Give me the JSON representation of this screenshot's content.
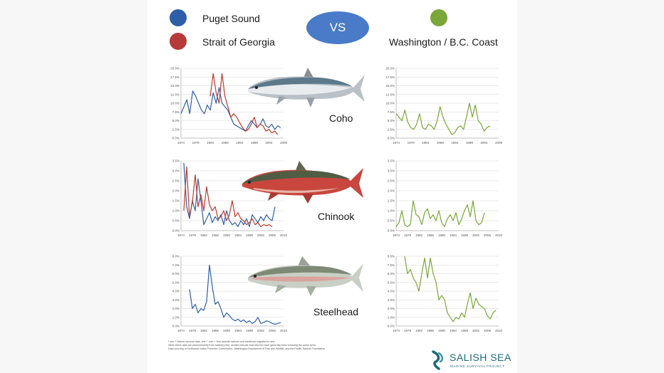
{
  "legend": {
    "left": [
      {
        "label": "Puget Sound",
        "color": "#2e5ea8"
      },
      {
        "label": "Strait of Georgia",
        "color": "#b73a3a"
      }
    ],
    "vs_label": "VS",
    "right": [
      {
        "label": "Washington / B.C. Coast",
        "color": "#7aa63a"
      }
    ]
  },
  "fish_labels": {
    "coho": "Coho",
    "chinook": "Chinook",
    "steelhead": "Steelhead"
  },
  "footnote": [
    "* one + Marine survival data, one + one + Year juvenile salmon and steelhead migrated to sea.",
    "While these data are predominantly from hatchery fish, studies indicate that wild fish have generally been following the same trend.",
    "Data courtesy of Northwest Indian Fisheries Commission, Washington Department of Fish and Wildlife, and the Pacific Salmon Foundation."
  ],
  "logo": {
    "name": "SALISH SEA",
    "subtitle": "MARINE SURVIVAL PROJECT"
  },
  "colors": {
    "puget": "#2e5ea8",
    "georgia": "#c0392b",
    "coast": "#7aa63a"
  },
  "chart_data": [
    {
      "id": "coho-salish",
      "type": "line",
      "ylim": [
        0,
        20
      ],
      "yticks": [
        "0.0%",
        "2.5%",
        "5.0%",
        "7.5%",
        "10.0%",
        "12.5%",
        "15.0%",
        "17.5%",
        "20.0%"
      ],
      "xlim": [
        1974,
        2009
      ],
      "xticks": [
        "1974",
        "1979",
        "1984",
        "1989",
        "1994",
        "1999",
        "2004",
        "2009"
      ],
      "series": [
        {
          "name": "Puget Sound",
          "color": "#2e5ea8",
          "x": [
            1974,
            1975,
            1976,
            1977,
            1978,
            1979,
            1980,
            1981,
            1982,
            1983,
            1984,
            1985,
            1986,
            1987,
            1988,
            1989,
            1990,
            1991,
            1992,
            1993,
            1994,
            1995,
            1996,
            1997,
            1998,
            1999,
            2000,
            2001,
            2002,
            2003,
            2004,
            2005,
            2006,
            2007,
            2008
          ],
          "y": [
            7,
            9,
            11,
            7,
            13.5,
            12,
            10,
            8,
            7,
            9.5,
            8,
            13,
            10,
            14.5,
            10,
            9,
            8,
            6,
            4,
            3.5,
            3,
            2.5,
            2,
            3.5,
            5,
            4,
            3,
            4,
            5.5,
            3.5,
            3,
            4,
            2.5,
            3.5,
            3
          ]
        },
        {
          "name": "Strait of Georgia",
          "color": "#c0392b",
          "x": [
            1984,
            1985,
            1986,
            1987,
            1988,
            1989,
            1990,
            1991,
            1992,
            1993,
            1994,
            1995,
            1996,
            1997,
            1998,
            1999,
            2000,
            2001,
            2002,
            2003,
            2004,
            2005,
            2006,
            2007
          ],
          "y": [
            12,
            18.5,
            13,
            10,
            18.5,
            12,
            9,
            6,
            7,
            6,
            4.5,
            3,
            2,
            2.5,
            4,
            6,
            3,
            4,
            3.5,
            2,
            2.5,
            1.5,
            2,
            1
          ]
        }
      ]
    },
    {
      "id": "coho-coast",
      "type": "line",
      "ylim": [
        0,
        20
      ],
      "yticks": [
        "0.0%",
        "2.5%",
        "5.0%",
        "7.5%",
        "10.0%",
        "12.5%",
        "15.0%",
        "17.5%",
        "20.0%"
      ],
      "xlim": [
        1974,
        2009
      ],
      "xticks": [
        "1974",
        "1979",
        "1984",
        "1989",
        "1994",
        "1999",
        "2004",
        "2009"
      ],
      "series": [
        {
          "name": "Washington / B.C. Coast",
          "color": "#7aa63a",
          "x": [
            1974,
            1975,
            1976,
            1977,
            1978,
            1979,
            1980,
            1981,
            1982,
            1983,
            1984,
            1985,
            1986,
            1987,
            1988,
            1989,
            1990,
            1991,
            1992,
            1993,
            1994,
            1995,
            1996,
            1997,
            1998,
            1999,
            2000,
            2001,
            2002,
            2003,
            2004,
            2005,
            2006
          ],
          "y": [
            7,
            6,
            5,
            8,
            4.5,
            3,
            2.5,
            4,
            7,
            3,
            2.5,
            4,
            3.5,
            2.5,
            5,
            9,
            6,
            4,
            2.5,
            1,
            1.5,
            3,
            3.5,
            2.5,
            6,
            10,
            6,
            9.5,
            5,
            4,
            2,
            3,
            3.5
          ]
        }
      ]
    },
    {
      "id": "chinook-salish",
      "type": "line",
      "ylim": [
        0,
        3.5
      ],
      "yticks": [
        "0.0%",
        "0.5%",
        "1.0%",
        "1.5%",
        "2.0%",
        "2.5%",
        "3.0%",
        "3.5%"
      ],
      "xlim": [
        1974,
        2010
      ],
      "xticks": [
        "1974",
        "1978",
        "1982",
        "1986",
        "1990",
        "1994",
        "1998",
        "2002",
        "2006",
        "2010"
      ],
      "series": [
        {
          "name": "Puget Sound",
          "color": "#2e5ea8",
          "x": [
            1975,
            1976,
            1977,
            1978,
            1979,
            1980,
            1981,
            1982,
            1983,
            1984,
            1985,
            1986,
            1987,
            1988,
            1989,
            1990,
            1991,
            1992,
            1993,
            1994,
            1995,
            1996,
            1997,
            1998,
            1999,
            2000,
            2001,
            2002,
            2003,
            2004,
            2005,
            2006,
            2007
          ],
          "y": [
            3.4,
            1.2,
            0.6,
            1.5,
            1.0,
            2.6,
            1.5,
            0.3,
            0.6,
            0.9,
            0.4,
            0.7,
            0.5,
            0.8,
            0.3,
            1.0,
            0.5,
            0.3,
            0.4,
            0.2,
            0.5,
            0.3,
            0.6,
            0.2,
            0.8,
            0.6,
            0.4,
            0.7,
            0.5,
            0.8,
            0.6,
            0.5,
            1.2
          ]
        },
        {
          "name": "Strait of Georgia",
          "color": "#c0392b",
          "x": [
            1975,
            1976,
            1977,
            1978,
            1979,
            1980,
            1981,
            1982,
            1983,
            1984,
            1985,
            1986,
            1987,
            1988,
            1989,
            1990,
            1991,
            1992,
            1993,
            1994,
            1995,
            1996,
            1997,
            1998,
            1999,
            2000,
            2001,
            2002,
            2003,
            2004,
            2005,
            2006
          ],
          "y": [
            1.0,
            3.2,
            0.7,
            1.4,
            2.8,
            1.2,
            1.8,
            1.0,
            2.2,
            1.3,
            1.0,
            1.2,
            0.6,
            0.7,
            1.0,
            0.5,
            0.8,
            1.5,
            0.7,
            0.9,
            0.6,
            0.5,
            0.3,
            0.4,
            0.6,
            0.3,
            0.4,
            0.2,
            0.3,
            0.25,
            0.3,
            0.2
          ]
        }
      ]
    },
    {
      "id": "chinook-coast",
      "type": "line",
      "ylim": [
        0,
        3.5
      ],
      "yticks": [
        "0.0%",
        "0.5%",
        "1.0%",
        "1.5%",
        "2.0%",
        "2.5%",
        "3.0%",
        "3.5%"
      ],
      "xlim": [
        1974,
        2010
      ],
      "xticks": [
        "1974",
        "1978",
        "1982",
        "1986",
        "1990",
        "1994",
        "1998",
        "2002",
        "2006",
        "2010"
      ],
      "series": [
        {
          "name": "Washington / B.C. Coast",
          "color": "#7aa63a",
          "x": [
            1974,
            1975,
            1976,
            1977,
            1978,
            1979,
            1980,
            1981,
            1982,
            1983,
            1984,
            1985,
            1986,
            1987,
            1988,
            1989,
            1990,
            1991,
            1992,
            1993,
            1994,
            1995,
            1996,
            1997,
            1998,
            1999,
            2000,
            2001,
            2002,
            2003,
            2004,
            2005
          ],
          "y": [
            0.2,
            0.4,
            1.0,
            0.3,
            0.2,
            0.3,
            1.5,
            0.8,
            0.7,
            0.3,
            0.9,
            1.1,
            0.6,
            0.8,
            0.5,
            1.0,
            0.4,
            0.2,
            0.6,
            0.8,
            0.5,
            0.9,
            0.3,
            0.6,
            1.0,
            1.3,
            0.7,
            1.5,
            0.5,
            0.3,
            0.4,
            0.9
          ]
        }
      ]
    },
    {
      "id": "steelhead-salish",
      "type": "line",
      "ylim": [
        0,
        8
      ],
      "yticks": [
        "0.0%",
        "1.0%",
        "2.0%",
        "3.0%",
        "4.0%",
        "5.0%",
        "6.0%",
        "7.0%",
        "8.0%"
      ],
      "xlim": [
        1974,
        2010
      ],
      "xticks": [
        "1974",
        "1978",
        "1982",
        "1986",
        "1990",
        "1994",
        "1998",
        "2002",
        "2006",
        "2010"
      ],
      "series": [
        {
          "name": "Puget Sound",
          "color": "#2e5ea8",
          "x": [
            1977,
            1978,
            1979,
            1980,
            1981,
            1982,
            1983,
            1984,
            1985,
            1986,
            1987,
            1988,
            1989,
            1990,
            1991,
            1992,
            1993,
            1994,
            1995,
            1996,
            1997,
            1998,
            1999,
            2000,
            2001,
            2002,
            2003,
            2004,
            2005,
            2006,
            2007,
            2008,
            2009
          ],
          "y": [
            4.2,
            2.0,
            2.5,
            1.5,
            2.0,
            1.8,
            2.8,
            7.0,
            4.5,
            2.5,
            2.8,
            2.0,
            1.0,
            1.5,
            1.2,
            0.8,
            0.6,
            0.8,
            0.5,
            0.7,
            0.4,
            0.6,
            0.3,
            0.5,
            1.0,
            0.3,
            0.4,
            0.6,
            0.5,
            0.3,
            0.2,
            0.3,
            0.4
          ]
        }
      ]
    },
    {
      "id": "steelhead-coast",
      "type": "line",
      "ylim": [
        0,
        8
      ],
      "yticks": [
        "0.0%",
        "1.0%",
        "2.0%",
        "3.0%",
        "4.0%",
        "5.0%",
        "6.0%",
        "7.0%",
        "8.0%"
      ],
      "xlim": [
        1974,
        2010
      ],
      "xticks": [
        "1974",
        "1978",
        "1982",
        "1986",
        "1990",
        "1994",
        "1998",
        "2002",
        "2006",
        "2010"
      ],
      "series": [
        {
          "name": "Washington / B.C. Coast",
          "color": "#7aa63a",
          "x": [
            1977,
            1978,
            1979,
            1980,
            1981,
            1982,
            1983,
            1984,
            1985,
            1986,
            1987,
            1988,
            1989,
            1990,
            1991,
            1992,
            1993,
            1994,
            1995,
            1996,
            1997,
            1998,
            1999,
            2000,
            2001,
            2002,
            2003,
            2004,
            2005,
            2006,
            2007,
            2008,
            2009
          ],
          "y": [
            8.0,
            6.0,
            6.5,
            5.5,
            5.0,
            4.0,
            6.0,
            7.8,
            5.5,
            7.8,
            6.0,
            5.0,
            3.0,
            3.5,
            3.0,
            1.5,
            1.0,
            0.5,
            1.0,
            0.8,
            1.5,
            1.0,
            2.5,
            3.8,
            2.0,
            3.2,
            2.5,
            2.2,
            2.0,
            1.2,
            0.8,
            1.5,
            1.8
          ]
        }
      ]
    }
  ]
}
